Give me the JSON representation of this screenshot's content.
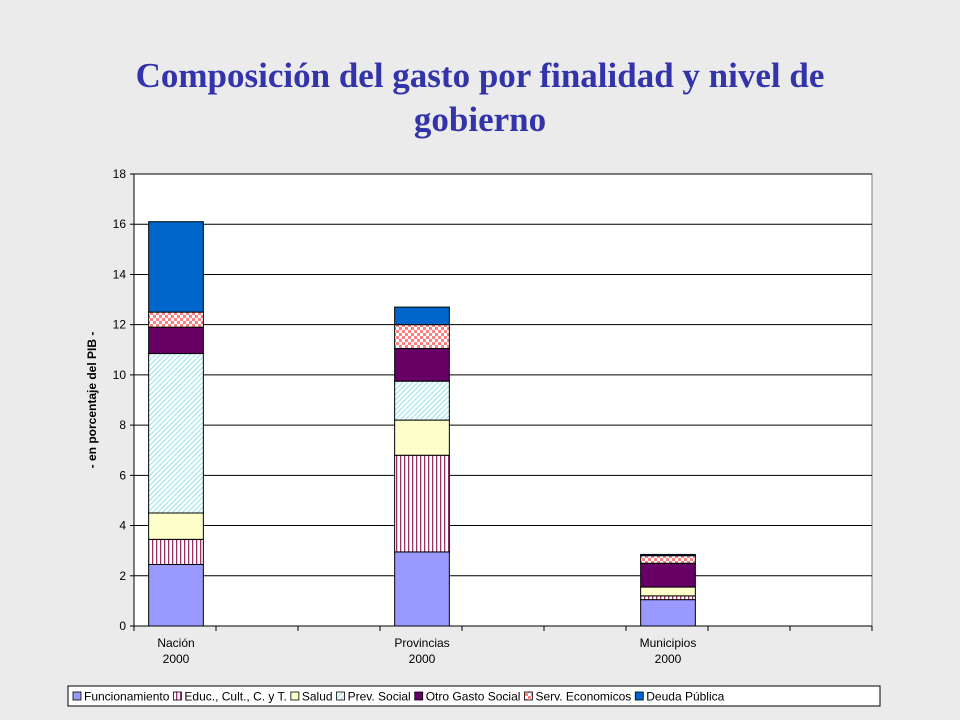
{
  "title_line1": "Composición  del gasto por finalidad y nivel de",
  "title_line2": "gobierno",
  "chart_data": {
    "type": "bar",
    "stacked": true,
    "ylabel": "- en porcentaje del PIB -",
    "ylim": [
      0,
      18
    ],
    "yticks": [
      0,
      2,
      4,
      6,
      8,
      10,
      12,
      14,
      16,
      18
    ],
    "grid": true,
    "legend_position": "bottom",
    "categories": [
      {
        "line1": "Nación",
        "line2": "2000"
      },
      {
        "line1": "Provincias",
        "line2": "2000"
      },
      {
        "line1": "Municipios",
        "line2": "2000"
      }
    ],
    "series": [
      {
        "name": "Funcionamiento",
        "values": [
          2.45,
          2.95,
          1.05
        ],
        "color": "#9999ff",
        "pattern": "solid"
      },
      {
        "name": "Educ., Cult., C. y T.",
        "values": [
          1.0,
          3.85,
          0.15
        ],
        "color": "#993366",
        "pattern": "vlines"
      },
      {
        "name": "Salud",
        "values": [
          1.05,
          1.4,
          0.35
        ],
        "color": "#ffffcc",
        "pattern": "solid"
      },
      {
        "name": "Prev. Social",
        "values": [
          6.35,
          1.55,
          0.0
        ],
        "color": "#ccffff",
        "pattern": "diag"
      },
      {
        "name": "Otro Gasto Social",
        "values": [
          1.05,
          1.3,
          0.95
        ],
        "color": "#660066",
        "pattern": "solid"
      },
      {
        "name": "Serv. Economicos",
        "values": [
          0.6,
          0.95,
          0.3
        ],
        "color": "#ff8080",
        "pattern": "checker"
      },
      {
        "name": "Deuda Pública",
        "values": [
          3.6,
          0.7,
          0.05
        ],
        "color": "#0066cc",
        "pattern": "solid"
      }
    ]
  }
}
